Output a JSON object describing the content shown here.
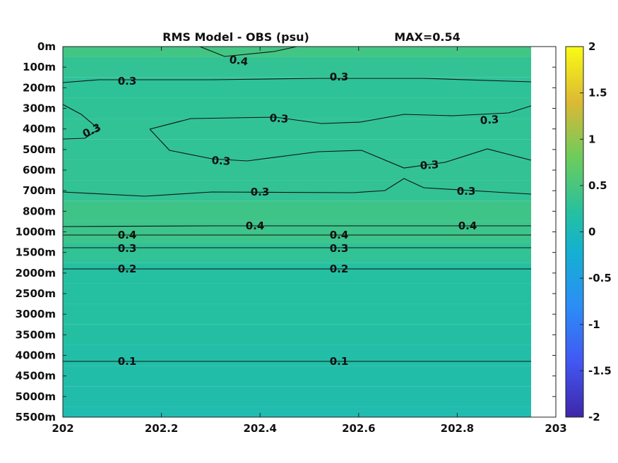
{
  "chart_data": {
    "type": "heatmap",
    "title": "RMS Model - OBS (psu)",
    "max_label": "MAX=0.54",
    "xlabel": "",
    "ylabel": "",
    "xlim": [
      202,
      203
    ],
    "x_ticks": [
      "202",
      "202.2",
      "202.4",
      "202.6",
      "202.8",
      "203"
    ],
    "depth_ticks": [
      "0m",
      "100m",
      "200m",
      "300m",
      "400m",
      "500m",
      "600m",
      "700m",
      "800m",
      "1000m",
      "1500m",
      "2000m",
      "2500m",
      "3000m",
      "3500m",
      "4000m",
      "4500m",
      "5000m",
      "5500m"
    ],
    "data_x_extent": [
      202,
      202.95
    ],
    "depth_values": [
      0.45,
      0.32,
      0.28,
      0.29,
      0.3,
      0.3,
      0.31,
      0.31,
      0.42,
      0.4,
      0.3,
      0.2,
      0.19,
      0.19,
      0.18,
      0.15,
      0.13,
      0.12,
      0.08
    ],
    "colorbar": {
      "range": [
        -2,
        2
      ],
      "ticks": [
        "2",
        "1.5",
        "1",
        "0.5",
        "0",
        "-0.5",
        "-1",
        "-1.5",
        "-2"
      ],
      "colormap": "parula"
    },
    "contours": [
      {
        "level": "0.4",
        "label": "0.4"
      },
      {
        "level": "0.3",
        "label": "0.3"
      },
      {
        "level": "0.2",
        "label": "0.2"
      },
      {
        "level": "0.1",
        "label": "0.1"
      }
    ],
    "grid": false
  }
}
